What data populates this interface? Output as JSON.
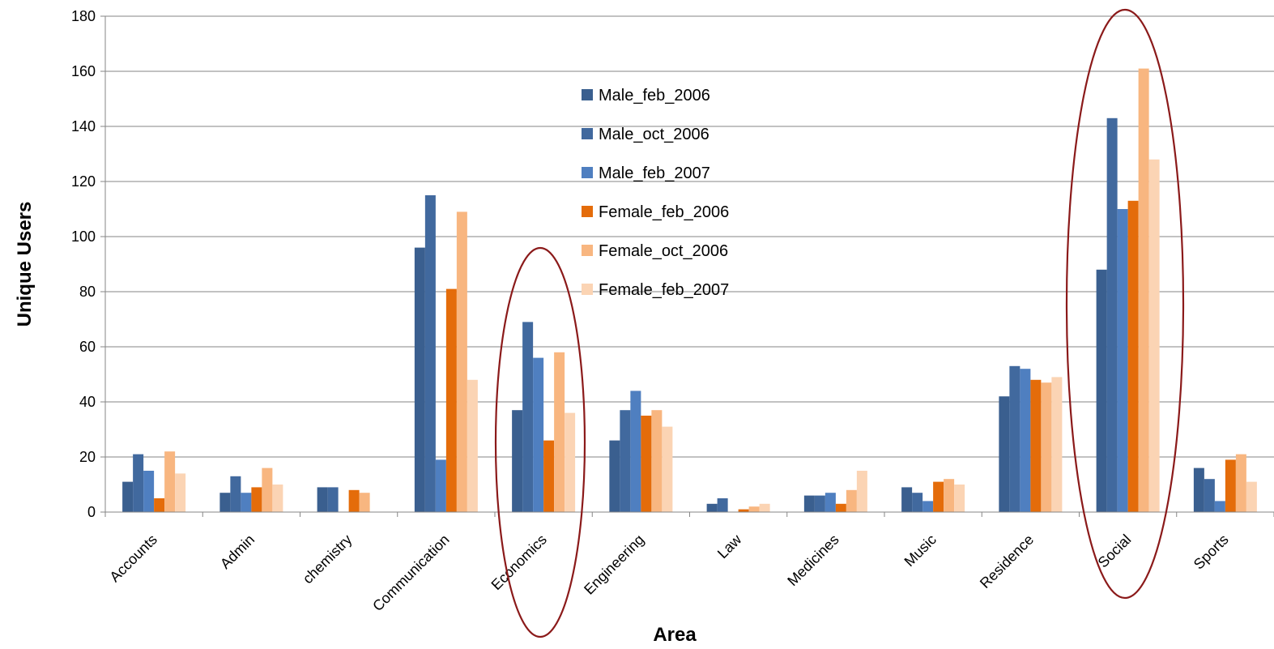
{
  "chart_data": {
    "type": "bar",
    "xlabel": "Area",
    "ylabel": "Unique Users",
    "ylim": [
      0,
      180
    ],
    "yticks": [
      0,
      20,
      40,
      60,
      80,
      100,
      120,
      140,
      160,
      180
    ],
    "grid": "horizontal",
    "legend_position": "center-top, inside plot",
    "categories": [
      "Accounts",
      "Admin",
      "chemistry",
      "Communication",
      "Economics",
      "Engineering",
      "Law",
      "Medicines",
      "Music",
      "Residence",
      "Social",
      "Sports"
    ],
    "series": [
      {
        "name": "Male_feb_2006",
        "color": "#3a5f8f",
        "values": [
          11,
          7,
          9,
          96,
          37,
          26,
          3,
          6,
          9,
          42,
          88,
          16
        ]
      },
      {
        "name": "Male_oct_2006",
        "color": "#41699e",
        "values": [
          21,
          13,
          9,
          115,
          69,
          37,
          5,
          6,
          7,
          53,
          143,
          12
        ]
      },
      {
        "name": "Male_feb_2007",
        "color": "#4f7fc0",
        "values": [
          15,
          7,
          0,
          19,
          56,
          44,
          0,
          7,
          4,
          52,
          110,
          4
        ]
      },
      {
        "name": "Female_feb_2006",
        "color": "#e46c0a",
        "values": [
          5,
          9,
          8,
          81,
          26,
          35,
          1,
          3,
          11,
          48,
          113,
          19
        ]
      },
      {
        "name": "Female_oct_2006",
        "color": "#f8b680",
        "values": [
          22,
          16,
          7,
          109,
          58,
          37,
          2,
          8,
          12,
          47,
          161,
          21
        ]
      },
      {
        "name": "Female_feb_2007",
        "color": "#fbd4b4",
        "values": [
          14,
          10,
          0,
          48,
          36,
          31,
          3,
          15,
          10,
          49,
          128,
          11
        ]
      }
    ],
    "highlights": [
      {
        "category": "Economics",
        "shape": "ellipse",
        "color": "#8b1a1a"
      },
      {
        "category": "Social",
        "shape": "ellipse",
        "color": "#8b1a1a"
      }
    ]
  }
}
